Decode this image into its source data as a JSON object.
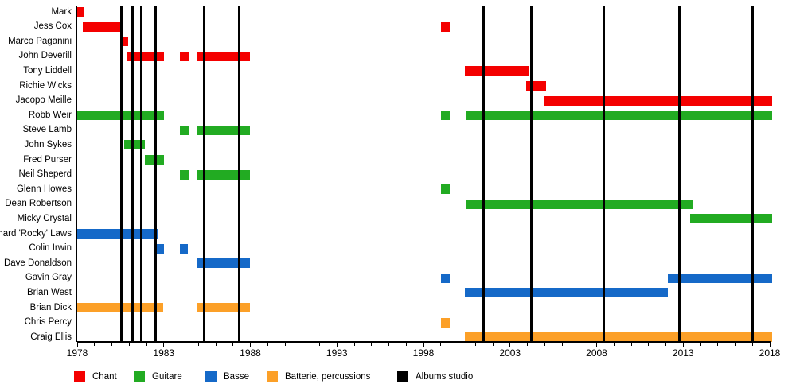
{
  "chart_data": {
    "type": "bar",
    "subtype": "horizontal_gantt_membership_timeline",
    "title": "",
    "xlabel": "",
    "ylabel": "",
    "grid": false,
    "legend_position": "bottom",
    "x_axis": {
      "min": 1978,
      "max": 2018,
      "major_ticks": [
        1978,
        1983,
        1988,
        1993,
        1998,
        2003,
        2008,
        2013,
        2018
      ],
      "major_tick_labels": [
        "1978",
        "1983",
        "1988",
        "1993",
        "1998",
        "2003",
        "2008",
        "2013",
        "2018"
      ],
      "minor_tick_every_years": 1
    },
    "role_colors": {
      "chant": "#f40000",
      "guitare": "#22ab22",
      "basse": "#1569c8",
      "batterie": "#fca028",
      "albums_studio": "#000000"
    },
    "members": [
      {
        "name": "Mark",
        "role": "chant",
        "segments": [
          [
            1978.0,
            1978.4
          ]
        ]
      },
      {
        "name": "Jess Cox",
        "role": "chant",
        "segments": [
          [
            1978.3,
            1980.6
          ],
          [
            1999.0,
            1999.5
          ]
        ]
      },
      {
        "name": "Marco Paganini",
        "role": "chant",
        "segments": [
          [
            1980.5,
            1980.95
          ]
        ]
      },
      {
        "name": "John Deverill",
        "role": "chant",
        "segments": [
          [
            1980.9,
            1983.0
          ],
          [
            1983.95,
            1984.45
          ],
          [
            1984.95,
            1988.0
          ]
        ]
      },
      {
        "name": "Tony Liddell",
        "role": "chant",
        "segments": [
          [
            2000.4,
            2004.05
          ]
        ]
      },
      {
        "name": "Richie Wicks",
        "role": "chant",
        "segments": [
          [
            2003.95,
            2005.1
          ]
        ]
      },
      {
        "name": "Jacopo Meille",
        "role": "chant",
        "segments": [
          [
            2004.95,
            2018.15
          ]
        ]
      },
      {
        "name": "Robb Weir",
        "role": "guitare",
        "segments": [
          [
            1978.0,
            1983.0
          ],
          [
            1999.0,
            1999.5
          ],
          [
            2000.45,
            2018.15
          ]
        ]
      },
      {
        "name": "Steve Lamb",
        "role": "guitare",
        "segments": [
          [
            1983.95,
            1984.45
          ],
          [
            1984.95,
            1988.0
          ]
        ]
      },
      {
        "name": "John Sykes",
        "role": "guitare",
        "segments": [
          [
            1980.7,
            1981.9
          ]
        ]
      },
      {
        "name": "Fred Purser",
        "role": "guitare",
        "segments": [
          [
            1981.9,
            1983.0
          ]
        ]
      },
      {
        "name": "Neil Sheperd",
        "role": "guitare",
        "segments": [
          [
            1983.95,
            1984.45
          ],
          [
            1984.95,
            1988.0
          ]
        ]
      },
      {
        "name": "Glenn Howes",
        "role": "guitare",
        "segments": [
          [
            1999.0,
            1999.5
          ]
        ]
      },
      {
        "name": "Dean Robertson",
        "role": "guitare",
        "segments": [
          [
            2000.45,
            2013.55
          ]
        ]
      },
      {
        "name": "Micky Crystal",
        "role": "guitare",
        "segments": [
          [
            2013.4,
            2018.15
          ]
        ]
      },
      {
        "name": "Richard 'Rocky' Laws",
        "role": "basse",
        "segments": [
          [
            1978.0,
            1982.65
          ]
        ]
      },
      {
        "name": "Colin Irwin",
        "role": "basse",
        "segments": [
          [
            1982.55,
            1983.0
          ],
          [
            1983.95,
            1984.4
          ]
        ]
      },
      {
        "name": "Dave Donaldson",
        "role": "basse",
        "segments": [
          [
            1984.95,
            1988.0
          ]
        ]
      },
      {
        "name": "Gavin Gray",
        "role": "basse",
        "segments": [
          [
            1999.0,
            1999.5
          ],
          [
            2012.1,
            2018.15
          ]
        ]
      },
      {
        "name": "Brian West",
        "role": "basse",
        "segments": [
          [
            2000.4,
            2012.1
          ]
        ]
      },
      {
        "name": "Brian Dick",
        "role": "batterie",
        "segments": [
          [
            1978.0,
            1982.95
          ],
          [
            1984.95,
            1988.0
          ]
        ]
      },
      {
        "name": "Chris Percy",
        "role": "batterie",
        "segments": [
          [
            1999.0,
            1999.5
          ]
        ]
      },
      {
        "name": "Craig Ellis",
        "role": "batterie",
        "segments": [
          [
            2000.4,
            2018.15
          ]
        ]
      }
    ],
    "albums_studio_years": [
      1980.55,
      1981.2,
      1981.7,
      1982.55,
      1985.35,
      1987.35,
      2001.45,
      2004.25,
      2008.4,
      2012.8,
      2017.0
    ]
  },
  "legend": {
    "items": [
      {
        "label": "Chant",
        "color": "#f40000"
      },
      {
        "label": "Guitare",
        "color": "#22ab22"
      },
      {
        "label": "Basse",
        "color": "#1569c8"
      },
      {
        "label": "Batterie, percussions",
        "color": "#fca028"
      },
      {
        "label": "Albums studio",
        "color": "#000000"
      }
    ]
  }
}
